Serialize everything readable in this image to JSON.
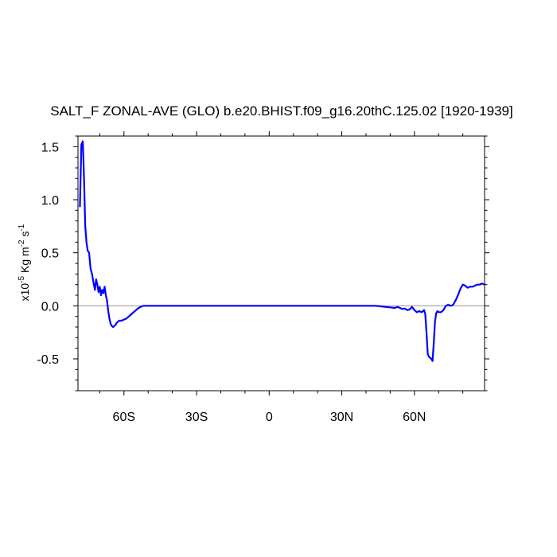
{
  "chart_data": {
    "type": "line",
    "title": "SALT_F ZONAL-AVE (GLO) b.e20.BHIST.f09_g16.20thC.125.02 [1920-1939]",
    "ylabel": {
      "prefix": "x10",
      "exp1": "-5",
      "mid": " Kg m",
      "exp2": "-2",
      "mid2": " s",
      "exp3": "-1"
    },
    "xlim": [
      -79,
      89
    ],
    "ylim": [
      -0.8,
      1.6
    ],
    "x_ticks": [
      {
        "value": -60,
        "label": "60S"
      },
      {
        "value": -30,
        "label": "30S"
      },
      {
        "value": 0,
        "label": "0"
      },
      {
        "value": 30,
        "label": "30N"
      },
      {
        "value": 60,
        "label": "60N"
      }
    ],
    "y_ticks": [
      {
        "value": 1.5,
        "label": "1.5"
      },
      {
        "value": 1.0,
        "label": "1.0"
      },
      {
        "value": 0.5,
        "label": "0.5"
      },
      {
        "value": 0.0,
        "label": "0.0"
      },
      {
        "value": -0.5,
        "label": "-0.5"
      }
    ],
    "zero_line": true,
    "grid": false,
    "line_color": "#0000ff",
    "zero_line_color": "#a0a0a0",
    "series": [
      {
        "x": [
          -78.2,
          -77.6,
          -77.0,
          -76.5,
          -76.0,
          -75.5,
          -75.0,
          -74.4,
          -73.8,
          -73.2,
          -72.6,
          -72.0,
          -71.5,
          -71.0,
          -70.5,
          -70.0,
          -69.5,
          -69.0,
          -68.5,
          -68.0,
          -67.5,
          -67.0,
          -66.5,
          -66.0,
          -65.5,
          -65.0,
          -64.5,
          -64.0,
          -63.5,
          -63.0,
          -62.5,
          -62.0,
          -61.5,
          -61.0,
          -60.0,
          -59.0,
          -58.0,
          -57.0,
          -56.0,
          -55.0,
          -54.0,
          -53.0,
          -52.0,
          -51.0,
          -50.0,
          -49.0,
          -48.0,
          -45.0,
          -40.0,
          -30.0,
          -20.0,
          -10.0,
          0.0,
          10.0,
          20.0,
          30.0,
          40.0,
          44.0,
          46.0,
          48.0,
          50.0,
          52.0,
          53.0,
          54.0,
          55.0,
          56.0,
          57.0,
          58.0,
          59.0,
          60.0,
          61.0,
          62.0,
          63.0,
          63.5,
          64.0,
          64.5,
          65.0,
          65.5,
          66.0,
          66.5,
          67.0,
          67.5,
          68.0,
          68.5,
          69.0,
          69.5,
          70.0,
          71.0,
          72.0,
          73.0,
          74.0,
          75.0,
          76.0,
          77.0,
          78.0,
          79.0,
          80.0,
          81.0,
          82.0,
          83.0,
          84.0,
          85.0,
          86.0,
          87.0,
          88.0,
          89.0
        ],
        "y": [
          0.93,
          1.52,
          1.55,
          1.2,
          0.75,
          0.6,
          0.52,
          0.5,
          0.35,
          0.3,
          0.22,
          0.15,
          0.25,
          0.2,
          0.13,
          0.18,
          0.1,
          0.15,
          0.12,
          0.18,
          0.1,
          0.05,
          -0.05,
          -0.12,
          -0.17,
          -0.19,
          -0.2,
          -0.19,
          -0.18,
          -0.16,
          -0.15,
          -0.14,
          -0.14,
          -0.14,
          -0.13,
          -0.12,
          -0.1,
          -0.08,
          -0.06,
          -0.04,
          -0.02,
          -0.01,
          0.0,
          0.0,
          0.0,
          0.0,
          0.0,
          0.0,
          0.0,
          0.0,
          0.0,
          0.0,
          0.0,
          0.0,
          0.0,
          0.0,
          0.0,
          0.0,
          -0.005,
          -0.01,
          -0.015,
          -0.02,
          -0.01,
          -0.02,
          -0.03,
          -0.025,
          -0.04,
          -0.035,
          -0.01,
          -0.04,
          -0.06,
          -0.05,
          -0.06,
          -0.05,
          -0.04,
          -0.08,
          -0.25,
          -0.45,
          -0.48,
          -0.49,
          -0.5,
          -0.52,
          -0.35,
          -0.15,
          -0.07,
          -0.05,
          -0.06,
          -0.06,
          -0.04,
          0.0,
          0.01,
          0.0,
          0.01,
          0.05,
          0.1,
          0.16,
          0.2,
          0.19,
          0.17,
          0.18,
          0.18,
          0.19,
          0.2,
          0.2,
          0.21,
          0.2
        ]
      }
    ]
  }
}
